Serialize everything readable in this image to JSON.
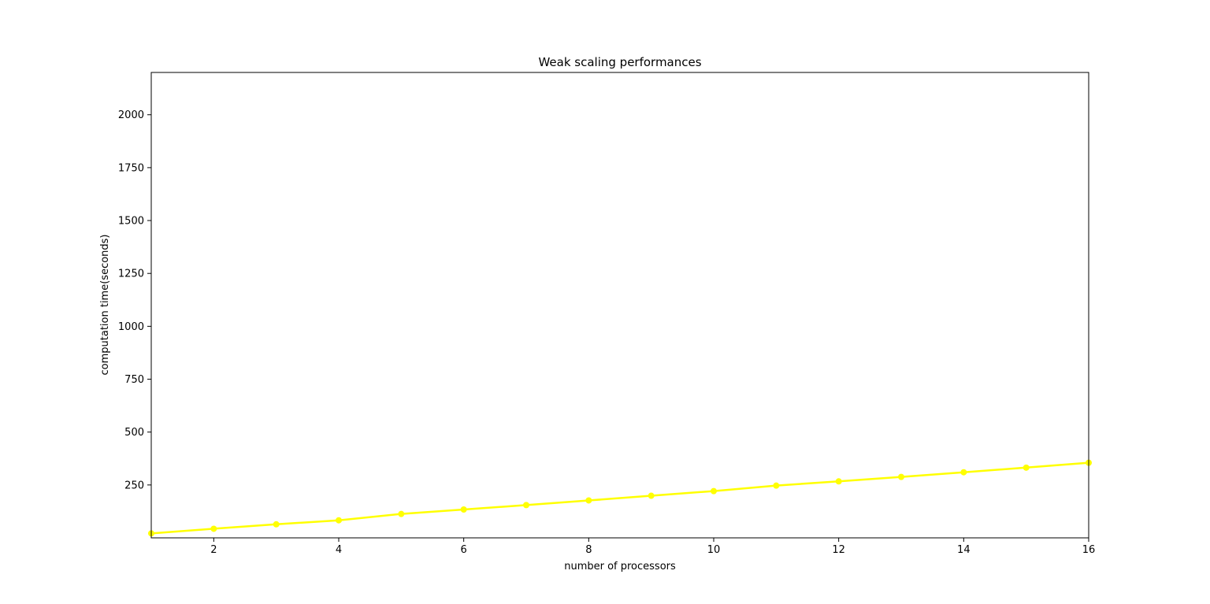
{
  "chart_data": {
    "type": "line",
    "title": "Weak scaling performances",
    "xlabel": "number of processors",
    "ylabel": "computation time(seconds)",
    "xlim": [
      1,
      16
    ],
    "ylim": [
      0,
      2200
    ],
    "x_ticks": [
      2,
      4,
      6,
      8,
      10,
      12,
      14,
      16
    ],
    "y_ticks": [
      250,
      500,
      750,
      1000,
      1250,
      1500,
      1750,
      2000
    ],
    "grid": false,
    "legend": "none",
    "series": [
      {
        "color": "#ffff00",
        "marker": "circle",
        "x": [
          1,
          2,
          3,
          4,
          5,
          6,
          7,
          8,
          9,
          10,
          11,
          12,
          13,
          14,
          15,
          16
        ],
        "y": [
          21,
          43,
          64,
          83,
          113,
          134,
          155,
          177,
          199,
          221,
          247,
          267,
          288,
          310,
          332,
          355
        ]
      }
    ]
  }
}
